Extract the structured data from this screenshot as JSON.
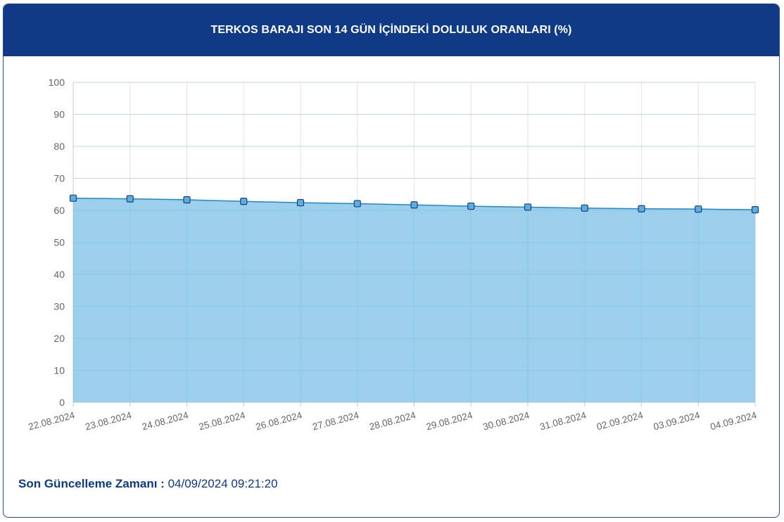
{
  "header": {
    "title": "TERKOS BARAJI SON 14 GÜN İÇİNDEKİ DOLULUK ORANLARI (%)"
  },
  "footer": {
    "label": "Son Güncelleme Zamanı :",
    "value": "04/09/2024 09:21:20"
  },
  "colors": {
    "header_bg": "#0f3a86",
    "fill": "#9ccfec",
    "line": "#1f88c6",
    "marker": "#5aaee3",
    "marker_stroke": "#1b3f73"
  },
  "chart_data": {
    "type": "area",
    "title": "",
    "xlabel": "",
    "ylabel": "",
    "ylim": [
      0,
      100
    ],
    "yticks": [
      0,
      10,
      20,
      30,
      40,
      50,
      60,
      70,
      80,
      90,
      100
    ],
    "grid": true,
    "categories": [
      "22.08.2024",
      "23.08.2024",
      "24.08.2024",
      "25.08.2024",
      "26.08.2024",
      "27.08.2024",
      "28.08.2024",
      "29.08.2024",
      "30.08.2024",
      "31.08.2024",
      "02.09.2024",
      "03.09.2024",
      "04.09.2024"
    ],
    "series": [
      {
        "values": [
          63.8,
          63.6,
          63.3,
          62.8,
          62.4,
          62.1,
          61.7,
          61.3,
          61.0,
          60.7,
          60.5,
          60.4,
          60.2
        ]
      }
    ]
  }
}
